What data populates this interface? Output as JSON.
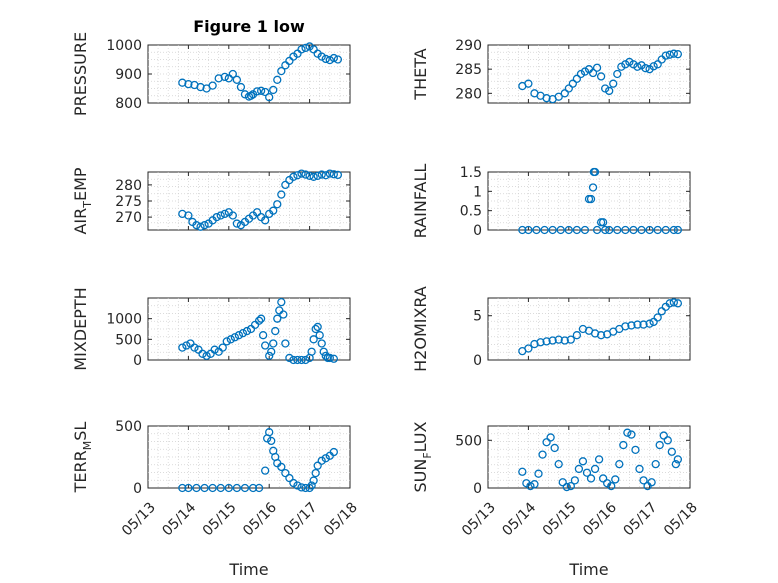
{
  "colors": {
    "marker": "#0072BD",
    "axis": "#262626",
    "grid": "#d0d0d0"
  },
  "chart_data": [
    {
      "type": "scatter",
      "title": "Figure 1 low",
      "ylabel": "PRESSURE",
      "xlabel": "",
      "xlim": [
        0,
        5
      ],
      "x_tick_labels": [],
      "ylim": [
        800,
        1000
      ],
      "yticks": [
        800,
        900,
        1000
      ],
      "grid": true,
      "x": [
        0.85,
        1.0,
        1.15,
        1.3,
        1.45,
        1.6,
        1.75,
        1.9,
        2.0,
        2.1,
        2.2,
        2.3,
        2.4,
        2.5,
        2.55,
        2.6,
        2.7,
        2.8,
        2.9,
        3.0,
        3.1,
        3.2,
        3.3,
        3.4,
        3.5,
        3.6,
        3.7,
        3.8,
        3.9,
        4.0,
        4.1,
        4.2,
        4.3,
        4.4,
        4.5,
        4.6,
        4.7
      ],
      "y": [
        870,
        865,
        862,
        855,
        850,
        860,
        885,
        890,
        885,
        900,
        880,
        855,
        830,
        822,
        825,
        830,
        840,
        842,
        838,
        820,
        845,
        880,
        910,
        930,
        945,
        960,
        970,
        985,
        990,
        995,
        985,
        970,
        960,
        952,
        948,
        955,
        950
      ]
    },
    {
      "type": "scatter",
      "ylabel": "THETA",
      "xlabel": "",
      "xlim": [
        0,
        5
      ],
      "x_tick_labels": [],
      "ylim": [
        278,
        290
      ],
      "yticks": [
        280,
        285,
        290
      ],
      "grid": true,
      "x": [
        0.85,
        1.0,
        1.15,
        1.3,
        1.45,
        1.6,
        1.75,
        1.9,
        2.0,
        2.1,
        2.2,
        2.3,
        2.4,
        2.5,
        2.6,
        2.7,
        2.8,
        2.9,
        3.0,
        3.1,
        3.2,
        3.3,
        3.4,
        3.5,
        3.6,
        3.7,
        3.8,
        3.9,
        4.0,
        4.1,
        4.2,
        4.3,
        4.4,
        4.5,
        4.6,
        4.7
      ],
      "y": [
        281.5,
        282,
        280,
        279.5,
        279,
        278.8,
        279.3,
        280,
        281,
        282,
        283,
        284,
        284.5,
        285,
        284.2,
        285.3,
        283.5,
        281,
        280.5,
        282,
        284,
        285.5,
        286,
        286.5,
        286,
        285.5,
        285.8,
        285.2,
        285,
        285.6,
        286,
        287,
        287.8,
        288,
        288.2,
        288.1
      ]
    },
    {
      "type": "scatter",
      "ylabel": "AIR_TEMP",
      "ylabel_parts": [
        "AIR",
        "T",
        "EMP"
      ],
      "xlabel": "",
      "xlim": [
        0,
        5
      ],
      "x_tick_labels": [],
      "ylim": [
        266,
        284
      ],
      "yticks": [
        270,
        275,
        280
      ],
      "grid": true,
      "x": [
        0.85,
        1.0,
        1.1,
        1.2,
        1.3,
        1.4,
        1.5,
        1.6,
        1.7,
        1.8,
        1.9,
        2.0,
        2.1,
        2.2,
        2.3,
        2.4,
        2.5,
        2.6,
        2.7,
        2.8,
        2.9,
        3.0,
        3.1,
        3.2,
        3.3,
        3.4,
        3.5,
        3.6,
        3.7,
        3.8,
        3.9,
        4.0,
        4.1,
        4.2,
        4.3,
        4.4,
        4.5,
        4.6,
        4.7
      ],
      "y": [
        271,
        270.5,
        268.5,
        267.5,
        267,
        267.5,
        268,
        269,
        270,
        270.5,
        271,
        271.5,
        270.5,
        268,
        267.5,
        268.5,
        269.5,
        270.5,
        271.5,
        270,
        269,
        271,
        272,
        274,
        277,
        280,
        281.5,
        282.5,
        283,
        283.5,
        283.2,
        282.8,
        282.5,
        282.8,
        283.2,
        283,
        283.5,
        283.3,
        283.1
      ]
    },
    {
      "type": "scatter",
      "ylabel": "RAINFALL",
      "xlabel": "",
      "xlim": [
        0,
        5
      ],
      "x_tick_labels": [],
      "ylim": [
        0,
        1.5
      ],
      "yticks": [
        0,
        0.5,
        1,
        1.5
      ],
      "grid": true,
      "x": [
        0.85,
        1.0,
        1.2,
        1.4,
        1.6,
        1.8,
        2.0,
        2.2,
        2.4,
        2.5,
        2.55,
        2.6,
        2.62,
        2.65,
        2.7,
        2.8,
        2.85,
        2.9,
        3.0,
        3.2,
        3.4,
        3.6,
        3.8,
        4.0,
        4.2,
        4.4,
        4.6,
        4.7
      ],
      "y": [
        0,
        0,
        0,
        0,
        0,
        0,
        0,
        0,
        0,
        0.8,
        0.8,
        1.1,
        1.5,
        1.5,
        0,
        0.2,
        0.2,
        0,
        0,
        0,
        0,
        0,
        0,
        0,
        0,
        0,
        0,
        0
      ]
    },
    {
      "type": "scatter",
      "ylabel": "MIXDEPTH",
      "xlabel": "",
      "xlim": [
        0,
        5
      ],
      "x_tick_labels": [],
      "ylim": [
        0,
        1500
      ],
      "yticks": [
        0,
        500,
        1000
      ],
      "grid": true,
      "x": [
        0.85,
        0.95,
        1.05,
        1.15,
        1.25,
        1.35,
        1.45,
        1.55,
        1.65,
        1.75,
        1.85,
        1.95,
        2.05,
        2.15,
        2.25,
        2.35,
        2.45,
        2.55,
        2.65,
        2.75,
        2.8,
        2.85,
        2.9,
        3.0,
        3.05,
        3.1,
        3.15,
        3.2,
        3.25,
        3.3,
        3.35,
        3.4,
        3.5,
        3.6,
        3.7,
        3.8,
        3.9,
        4.0,
        4.05,
        4.1,
        4.15,
        4.2,
        4.25,
        4.3,
        4.35,
        4.4,
        4.45,
        4.5,
        4.6
      ],
      "y": [
        300,
        350,
        400,
        300,
        250,
        150,
        100,
        150,
        250,
        200,
        300,
        450,
        500,
        550,
        600,
        650,
        700,
        750,
        850,
        950,
        1000,
        600,
        350,
        100,
        200,
        400,
        700,
        1000,
        1200,
        1400,
        1100,
        400,
        50,
        0,
        0,
        0,
        0,
        50,
        200,
        500,
        750,
        800,
        600,
        400,
        200,
        100,
        50,
        50,
        30
      ]
    },
    {
      "type": "scatter",
      "ylabel": "H2OMIXRA",
      "xlabel": "",
      "xlim": [
        0,
        5
      ],
      "x_tick_labels": [],
      "ylim": [
        0,
        7
      ],
      "yticks": [
        0,
        5
      ],
      "grid": true,
      "x": [
        0.85,
        1.0,
        1.15,
        1.3,
        1.45,
        1.6,
        1.75,
        1.9,
        2.05,
        2.2,
        2.35,
        2.5,
        2.65,
        2.8,
        2.95,
        3.1,
        3.25,
        3.4,
        3.55,
        3.7,
        3.85,
        4.0,
        4.1,
        4.2,
        4.3,
        4.4,
        4.5,
        4.6,
        4.7
      ],
      "y": [
        1,
        1.3,
        1.8,
        2,
        2.1,
        2.2,
        2.3,
        2.2,
        2.3,
        2.8,
        3.5,
        3.3,
        3.0,
        2.8,
        2.9,
        3.2,
        3.5,
        3.8,
        3.9,
        4.0,
        4.0,
        4.1,
        4.3,
        4.8,
        5.5,
        6.0,
        6.4,
        6.5,
        6.4
      ]
    },
    {
      "type": "scatter",
      "ylabel": "TERR_MSL",
      "ylabel_parts": [
        "TERR",
        "M",
        "SL"
      ],
      "xlabel": "Time",
      "xlim": [
        0,
        5
      ],
      "x_tick_labels": [
        "05/13",
        "05/14",
        "05/15",
        "05/16",
        "05/17",
        "05/18"
      ],
      "ylim": [
        0,
        500
      ],
      "yticks": [
        0,
        500
      ],
      "grid": true,
      "x": [
        0.85,
        1.0,
        1.2,
        1.4,
        1.6,
        1.8,
        2.0,
        2.2,
        2.4,
        2.6,
        2.75,
        2.9,
        2.95,
        3.0,
        3.05,
        3.1,
        3.15,
        3.2,
        3.3,
        3.4,
        3.5,
        3.6,
        3.7,
        3.8,
        3.9,
        4.0,
        4.05,
        4.1,
        4.15,
        4.2,
        4.3,
        4.4,
        4.5,
        4.6
      ],
      "y": [
        0,
        0,
        0,
        0,
        0,
        0,
        0,
        0,
        0,
        0,
        0,
        140,
        400,
        450,
        380,
        300,
        250,
        200,
        170,
        120,
        80,
        40,
        20,
        5,
        0,
        0,
        20,
        60,
        120,
        180,
        220,
        240,
        260,
        290
      ]
    },
    {
      "type": "scatter",
      "ylabel": "SUN_FLUX",
      "ylabel_parts": [
        "SUN",
        "F",
        "LUX"
      ],
      "xlabel": "Time",
      "xlim": [
        0,
        5
      ],
      "x_tick_labels": [
        "05/13",
        "05/14",
        "05/15",
        "05/16",
        "05/17",
        "05/18"
      ],
      "ylim": [
        0,
        650
      ],
      "yticks": [
        0,
        500
      ],
      "grid": true,
      "x": [
        0.85,
        0.95,
        1.05,
        1.15,
        1.25,
        1.35,
        1.45,
        1.55,
        1.65,
        1.75,
        1.85,
        1.95,
        2.05,
        2.15,
        2.25,
        2.35,
        2.45,
        2.55,
        2.65,
        2.75,
        2.85,
        2.95,
        3.05,
        3.15,
        3.25,
        3.35,
        3.45,
        3.55,
        3.65,
        3.75,
        3.85,
        3.95,
        4.05,
        4.15,
        4.25,
        4.35,
        4.45,
        4.55,
        4.65,
        4.7
      ],
      "y": [
        170,
        50,
        20,
        40,
        150,
        350,
        480,
        530,
        420,
        250,
        60,
        10,
        20,
        80,
        200,
        280,
        160,
        100,
        200,
        300,
        100,
        50,
        20,
        90,
        250,
        450,
        580,
        560,
        400,
        200,
        80,
        20,
        60,
        250,
        450,
        550,
        500,
        380,
        250,
        300
      ]
    }
  ]
}
